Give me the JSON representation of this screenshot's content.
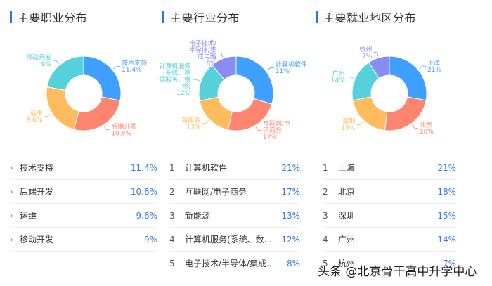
{
  "colors": {
    "accent": "#1e7be6",
    "pct_text": "#2f7de1",
    "palette": [
      "#3fa0ff",
      "#ff8570",
      "#ffbc5e",
      "#56d1dc",
      "#8a8cf6"
    ]
  },
  "panels": [
    {
      "title": "主要职业分布",
      "list_style": "chevron",
      "items": [
        {
          "name": "技术支持",
          "pct": "11.4%"
        },
        {
          "name": "后端开发",
          "pct": "10.6%"
        },
        {
          "name": "运维",
          "pct": "9.6%"
        },
        {
          "name": "移动开发",
          "pct": "9%"
        }
      ]
    },
    {
      "title": "主要行业分布",
      "list_style": "rank",
      "items": [
        {
          "rank": "1",
          "name": "计算机软件",
          "pct": "21%"
        },
        {
          "rank": "2",
          "name": "互联网/电子商务",
          "pct": "17%"
        },
        {
          "rank": "3",
          "name": "新能源",
          "pct": "13%"
        },
        {
          "rank": "4",
          "name": "计算机服务(系统、数...",
          "pct": "12%"
        },
        {
          "rank": "5",
          "name": "电子技术/半导体/集成...",
          "pct": "8%"
        }
      ]
    },
    {
      "title": "主要就业地区分布",
      "list_style": "rank",
      "items": [
        {
          "rank": "1",
          "name": "上海",
          "pct": "21%"
        },
        {
          "rank": "2",
          "name": "北京",
          "pct": "18%"
        },
        {
          "rank": "3",
          "name": "深圳",
          "pct": "15%"
        },
        {
          "rank": "4",
          "name": "广州",
          "pct": "14%"
        },
        {
          "rank": "5",
          "name": "杭州",
          "pct": "7%"
        }
      ]
    }
  ],
  "watermark": "头条 @北京骨干高中升学中心",
  "chart_data": [
    {
      "type": "pie",
      "title": "主要职业分布",
      "categories": [
        "技术支持",
        "后端开发",
        "运维",
        "移动开发"
      ],
      "values": [
        11.4,
        10.6,
        9.6,
        9
      ],
      "labels": [
        [
          "技术支持",
          "11.4%"
        ],
        [
          "后端开发",
          "10.6%"
        ],
        [
          "运维",
          "9.6%"
        ],
        [
          "移动开发",
          "9%"
        ]
      ],
      "donut": true
    },
    {
      "type": "pie",
      "title": "主要行业分布",
      "categories": [
        "计算机软件",
        "互联网/电子商务",
        "新能源",
        "计算机服务(系统、数据服务、维修)",
        "电子技术/半导体/集成电路"
      ],
      "values": [
        21,
        17,
        13,
        12,
        8
      ],
      "labels": [
        [
          "计算机软件",
          "21%"
        ],
        [
          "互联网/电",
          "子商务",
          "17%"
        ],
        [
          "新能源",
          "13%"
        ],
        [
          "计算机服务",
          "(系统、数",
          "据服务、维",
          "修)",
          "12%"
        ],
        [
          "电子技术/",
          "半导体/集",
          "成电路",
          "8%"
        ]
      ],
      "donut": true
    },
    {
      "type": "pie",
      "title": "主要就业地区分布",
      "categories": [
        "上海",
        "北京",
        "深圳",
        "广州",
        "杭州"
      ],
      "values": [
        21,
        18,
        15,
        14,
        7
      ],
      "labels": [
        [
          "上海",
          "21%"
        ],
        [
          "北京",
          "18%"
        ],
        [
          "深圳",
          "15%"
        ],
        [
          "广州",
          "14%"
        ],
        [
          "杭州",
          "7%"
        ]
      ],
      "donut": true
    }
  ]
}
